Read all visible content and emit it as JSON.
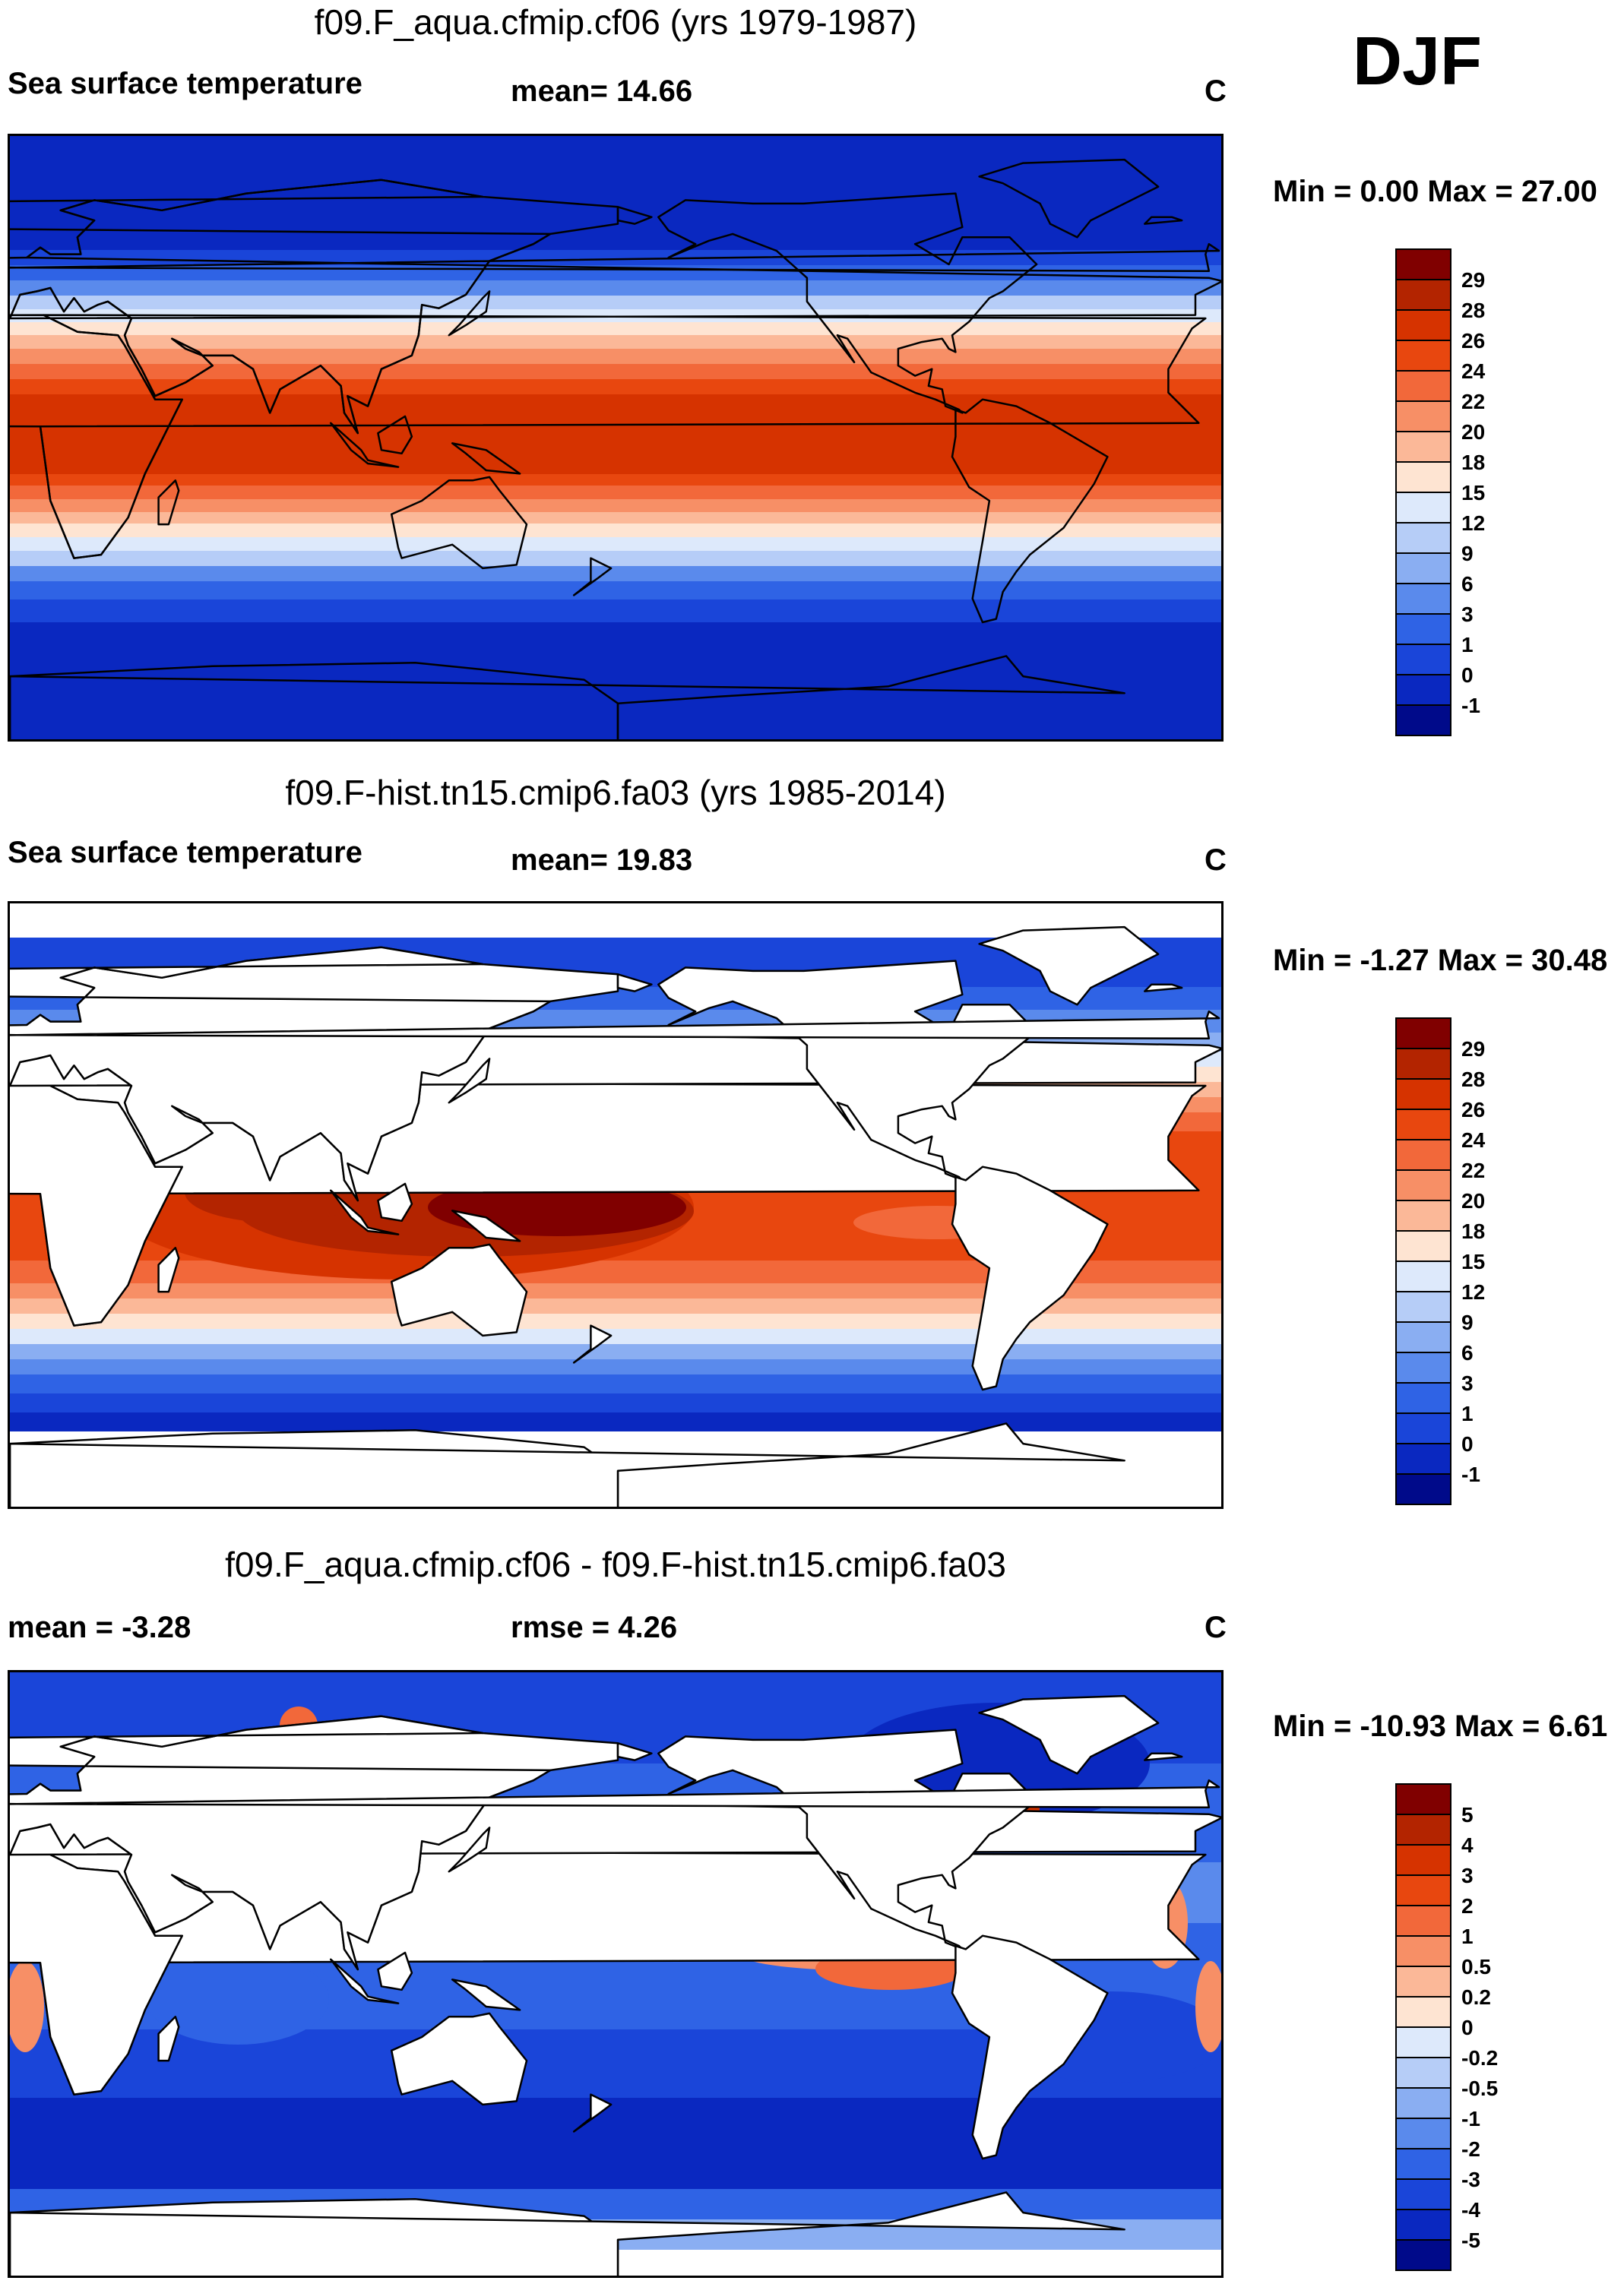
{
  "season": "DJF",
  "panels": [
    {
      "title": "f09.F_aqua.cfmip.cf06 (yrs 1979-1987)",
      "left_label": "Sea surface temperature",
      "center_label": "mean=  14.66",
      "units": "C",
      "minmax": "Min =   0.00 Max =  27.00",
      "kind": "aqua"
    },
    {
      "title": "f09.F-hist.tn15.cmip6.fa03 (yrs 1985-2014)",
      "left_label": "Sea surface temperature",
      "center_label": "mean=  19.83",
      "units": "C",
      "minmax": "Min =  -1.27 Max =  30.48",
      "kind": "obs"
    },
    {
      "title": "f09.F_aqua.cfmip.cf06 - f09.F-hist.tn15.cmip6.fa03",
      "left_label": "mean =  -3.28",
      "center_label": "rmse =   4.26",
      "units": "C",
      "minmax": "Min = -10.93 Max =   6.61",
      "kind": "diff"
    }
  ],
  "colorbars": {
    "sst": {
      "labels": [
        "29",
        "28",
        "26",
        "24",
        "22",
        "20",
        "18",
        "15",
        "12",
        "9",
        "6",
        "3",
        "1",
        "0",
        "-1"
      ],
      "colors": [
        "#800000",
        "#b32400",
        "#d63300",
        "#e8470f",
        "#f2683a",
        "#f78f66",
        "#fbb898",
        "#fee4d2",
        "#dde9fb",
        "#b6cdf7",
        "#8aaef2",
        "#5a8aec",
        "#2f63e5",
        "#1a45d9",
        "#0a28c0",
        "#000a8a"
      ]
    },
    "diff": {
      "labels": [
        "5",
        "4",
        "3",
        "2",
        "1",
        "0.5",
        "0.2",
        "0",
        "-0.2",
        "-0.5",
        "-1",
        "-2",
        "-3",
        "-4",
        "-5"
      ],
      "colors": [
        "#800000",
        "#b32400",
        "#d63300",
        "#e8470f",
        "#f2683a",
        "#f78f66",
        "#fbb898",
        "#fee4d2",
        "#dde9fb",
        "#b6cdf7",
        "#8aaef2",
        "#5a8aec",
        "#2f63e5",
        "#1a45d9",
        "#0a28c0",
        "#000a8a"
      ]
    }
  }
}
